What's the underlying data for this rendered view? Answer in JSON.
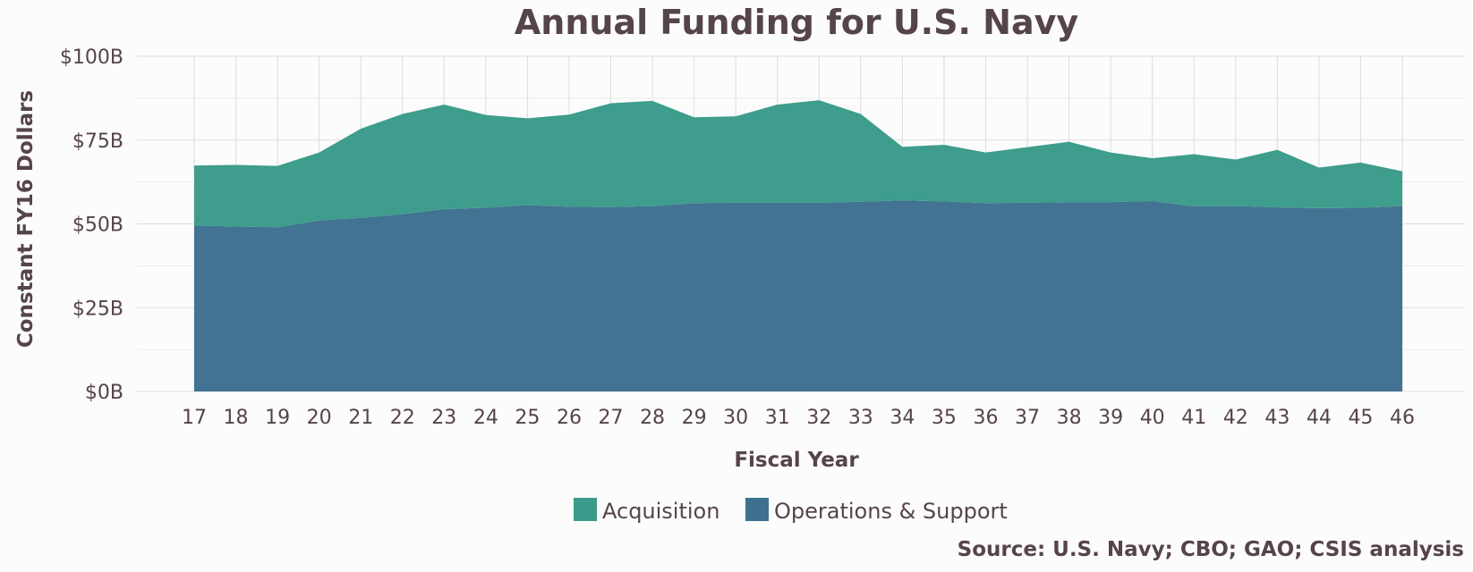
{
  "chart_data": {
    "type": "area",
    "stacked": true,
    "title": "Annual Funding for U.S. Navy",
    "xlabel": "Fiscal Year",
    "ylabel": "Constant FY16 Dollars",
    "source": "Source: U.S. Navy; CBO; GAO; CSIS analysis",
    "x": [
      "17",
      "18",
      "19",
      "20",
      "21",
      "22",
      "23",
      "24",
      "25",
      "26",
      "27",
      "28",
      "29",
      "30",
      "31",
      "32",
      "33",
      "34",
      "35",
      "36",
      "37",
      "38",
      "39",
      "40",
      "41",
      "42",
      "43",
      "44",
      "45",
      "46"
    ],
    "ylim": [
      0,
      100
    ],
    "yticks": [
      0,
      25,
      50,
      75,
      100
    ],
    "ytick_labels": [
      "$0B",
      "$25B",
      "$50B",
      "$75B",
      "$100B"
    ],
    "grid": true,
    "legend_position": "bottom",
    "series": [
      {
        "name": "Operations & Support",
        "color": "#3e7090",
        "values": [
          49.5,
          49.2,
          49.0,
          51.0,
          51.8,
          52.9,
          54.4,
          54.8,
          55.6,
          55.1,
          55.0,
          55.3,
          56.2,
          56.3,
          56.3,
          56.3,
          56.6,
          57.0,
          56.7,
          56.2,
          56.3,
          56.5,
          56.5,
          56.8,
          55.2,
          55.3,
          54.9,
          54.7,
          54.8,
          55.3
        ]
      },
      {
        "name": "Acquisition",
        "color": "#3a9b8a",
        "values": [
          17.9,
          18.4,
          18.3,
          20.3,
          26.6,
          29.9,
          31.2,
          27.7,
          25.9,
          27.5,
          31.0,
          31.4,
          25.6,
          25.8,
          29.3,
          30.6,
          26.2,
          16.0,
          16.9,
          15.1,
          16.6,
          18.0,
          14.8,
          12.8,
          15.6,
          13.9,
          17.2,
          12.1,
          13.5,
          10.4
        ]
      }
    ]
  }
}
